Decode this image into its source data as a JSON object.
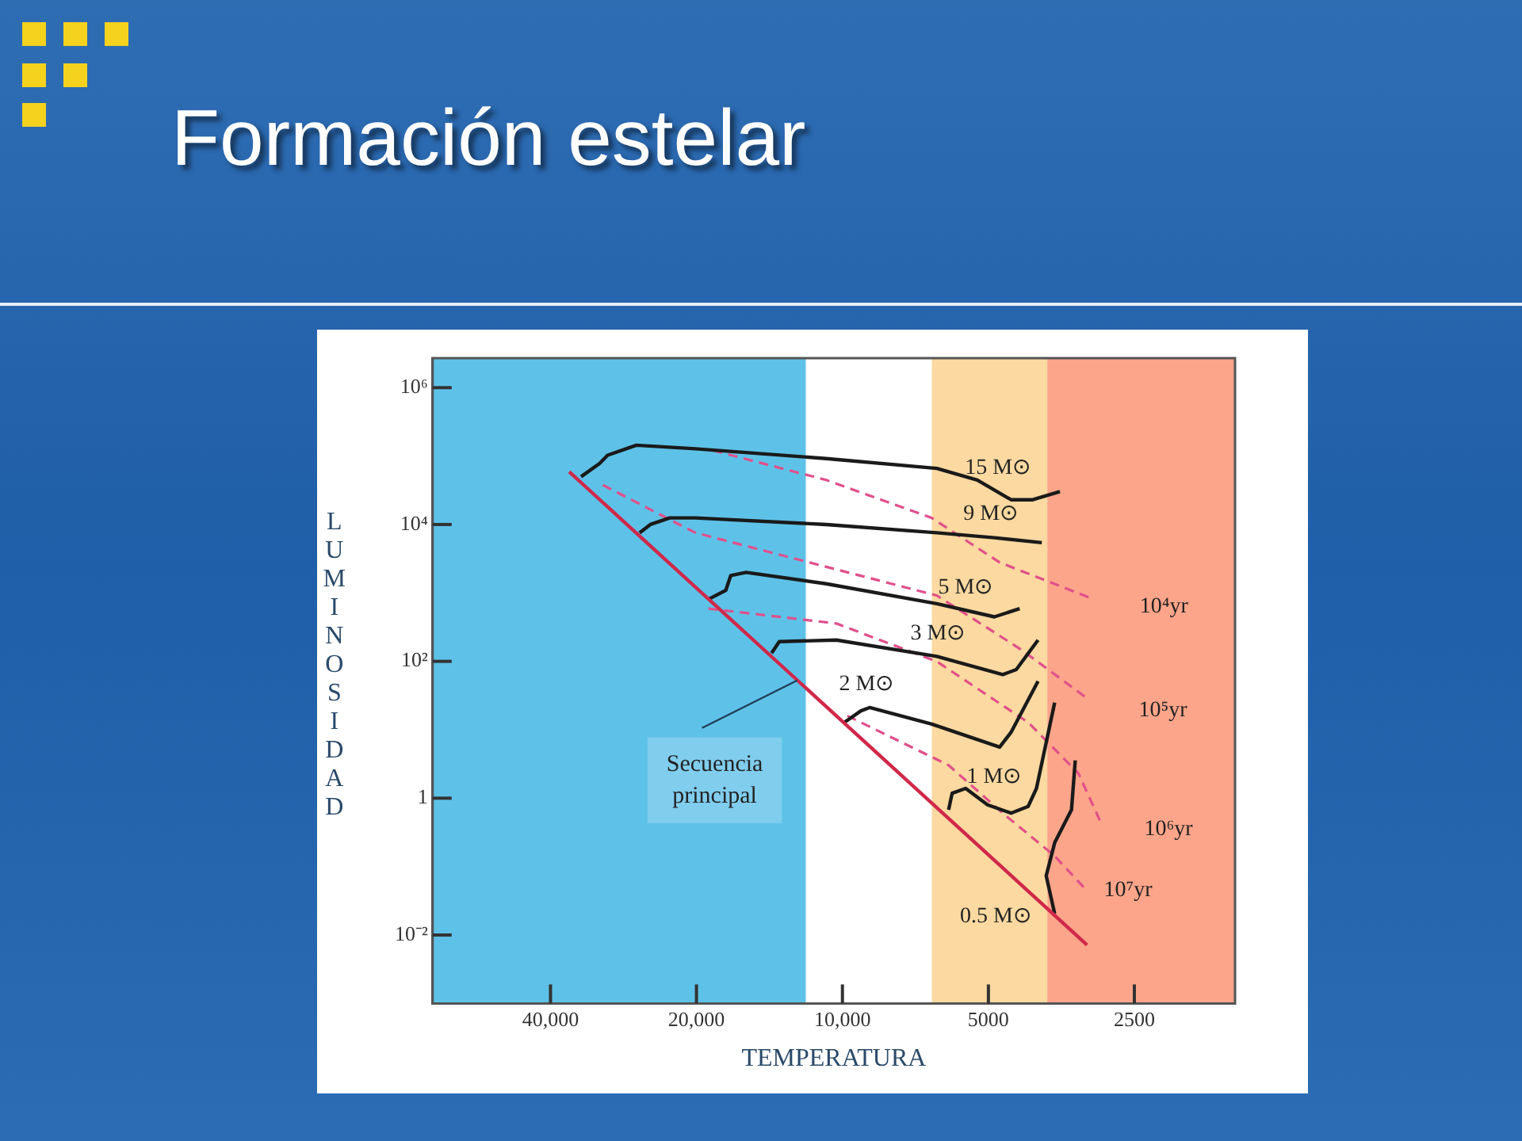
{
  "chart_data": {
    "type": "line",
    "title": "Formación estelar",
    "xlabel": "TEMPERATURA",
    "ylabel": "LUMINOSIDAD",
    "log": "xy",
    "grid": false,
    "legend": false,
    "xlim": [
      70000,
      1550
    ],
    "ylim": [
      0.001,
      2700000
    ],
    "xticks": [
      {
        "value": 40000,
        "label": "40,000"
      },
      {
        "value": 20000,
        "label": "20,000"
      },
      {
        "value": 10000,
        "label": "10,000"
      },
      5000,
      2500
    ],
    "yticks": [
      {
        "value": 0.01,
        "label": "10⁻²"
      },
      1,
      {
        "value": 100,
        "label": "10²"
      },
      {
        "value": 10000,
        "label": "10⁴"
      },
      {
        "value": 1000000,
        "label": "10⁶"
      }
    ],
    "bands": [
      {
        "axis": "x",
        "from": 70000,
        "to": 11900,
        "color": "#5ec2e8"
      },
      {
        "axis": "x",
        "from": 6540,
        "to": 3780,
        "color": "#fbd9a0"
      },
      {
        "axis": "x",
        "from": 3780,
        "to": 1550,
        "color": "#fca58a"
      }
    ],
    "series": [
      {
        "color": "#d0284a",
        "x": [
          36600,
          3130
        ],
        "values": [
          59000,
          0.00715
        ]
      },
      {
        "name": "15 M⊙",
        "color": "#1a1a1a",
        "x": [
          34600,
          31700,
          30500,
          26600,
          20100,
          10800,
          6390,
          5270,
          4490,
          4050,
          3560
        ],
        "values": [
          50000,
          77800,
          103000,
          144000,
          128000,
          92000,
          66000,
          44700,
          23000,
          23000,
          30300
        ]
      },
      {
        "name": "9 M⊙",
        "color": "#1a1a1a",
        "x": [
          26200,
          24900,
          22700,
          20100,
          10800,
          6390,
          4860,
          3880
        ],
        "values": [
          7570,
          10000,
          12500,
          12500,
          10000,
          7570,
          6410,
          5430
        ]
      },
      {
        "name": "5 M⊙",
        "color": "#1a1a1a",
        "x": [
          18800,
          17400,
          17000,
          15800,
          10800,
          6390,
          4860,
          4310
        ],
        "values": [
          822,
          1090,
          1790,
          2000,
          1360,
          697,
          447,
          590
        ]
      },
      {
        "name": "3 M⊙",
        "color": "#1a1a1a",
        "x": [
          14000,
          13500,
          10300,
          6390,
          4670,
          4380,
          3950
        ],
        "values": [
          132,
          194,
          205,
          118,
          64,
          76,
          205
        ]
      },
      {
        "name": "2 M⊙",
        "color": "#1a1a1a",
        "x": [
          9910,
          9160,
          8790,
          6540,
          4740,
          4490,
          3950
        ],
        "values": [
          12.8,
          18.9,
          21.1,
          12.1,
          5.57,
          9.18,
          51.3
        ]
      },
      {
        "name": "1 M⊙",
        "color": "#1a1a1a",
        "x": [
          6040,
          5940,
          5570,
          5020,
          4490,
          4140,
          3980,
          3650
        ],
        "values": [
          0.676,
          1.18,
          1.39,
          0.8,
          0.605,
          0.757,
          1.39,
          24.9
        ]
      },
      {
        "name": "0.5 M⊙",
        "color": "#1a1a1a",
        "x": [
          3310,
          3370,
          3650,
          3800,
          3650
        ],
        "values": [
          3.57,
          0.676,
          0.223,
          0.0735,
          0.0205
        ]
      },
      {
        "name": "10⁴yr",
        "color": "#e0508a",
        "line_style": "dashed",
        "x": [
          18500,
          10800,
          6550,
          4740,
          3050
        ],
        "values": [
          121000,
          44700,
          12500,
          2790,
          822
        ]
      },
      {
        "name": "10⁵yr",
        "color": "#e0508a",
        "line_style": "dashed",
        "x": [
          31200,
          20100,
          11700,
          6390,
          4270,
          3110
        ],
        "values": [
          37800,
          7570,
          2790,
          918,
          147,
          27.9
        ]
      },
      {
        "name": "10⁶yr",
        "color": "#e0508a",
        "line_style": "dashed",
        "x": [
          18900,
          10300,
          6390,
          4140,
          3260,
          2940
        ],
        "values": [
          590,
          358,
          99.7,
          12.8,
          2.3,
          0.459
        ]
      },
      {
        "name": "10⁷yr",
        "color": "#e0508a",
        "line_style": "dashed",
        "x": [
          9770,
          6040,
          4630,
          3650,
          3180
        ],
        "values": [
          16,
          3.03,
          0.573,
          0.143,
          0.0499
        ]
      }
    ],
    "annotations": [
      {
        "text": "Secuencia principal",
        "x": 12400,
        "y": 52.6
      }
    ]
  }
}
